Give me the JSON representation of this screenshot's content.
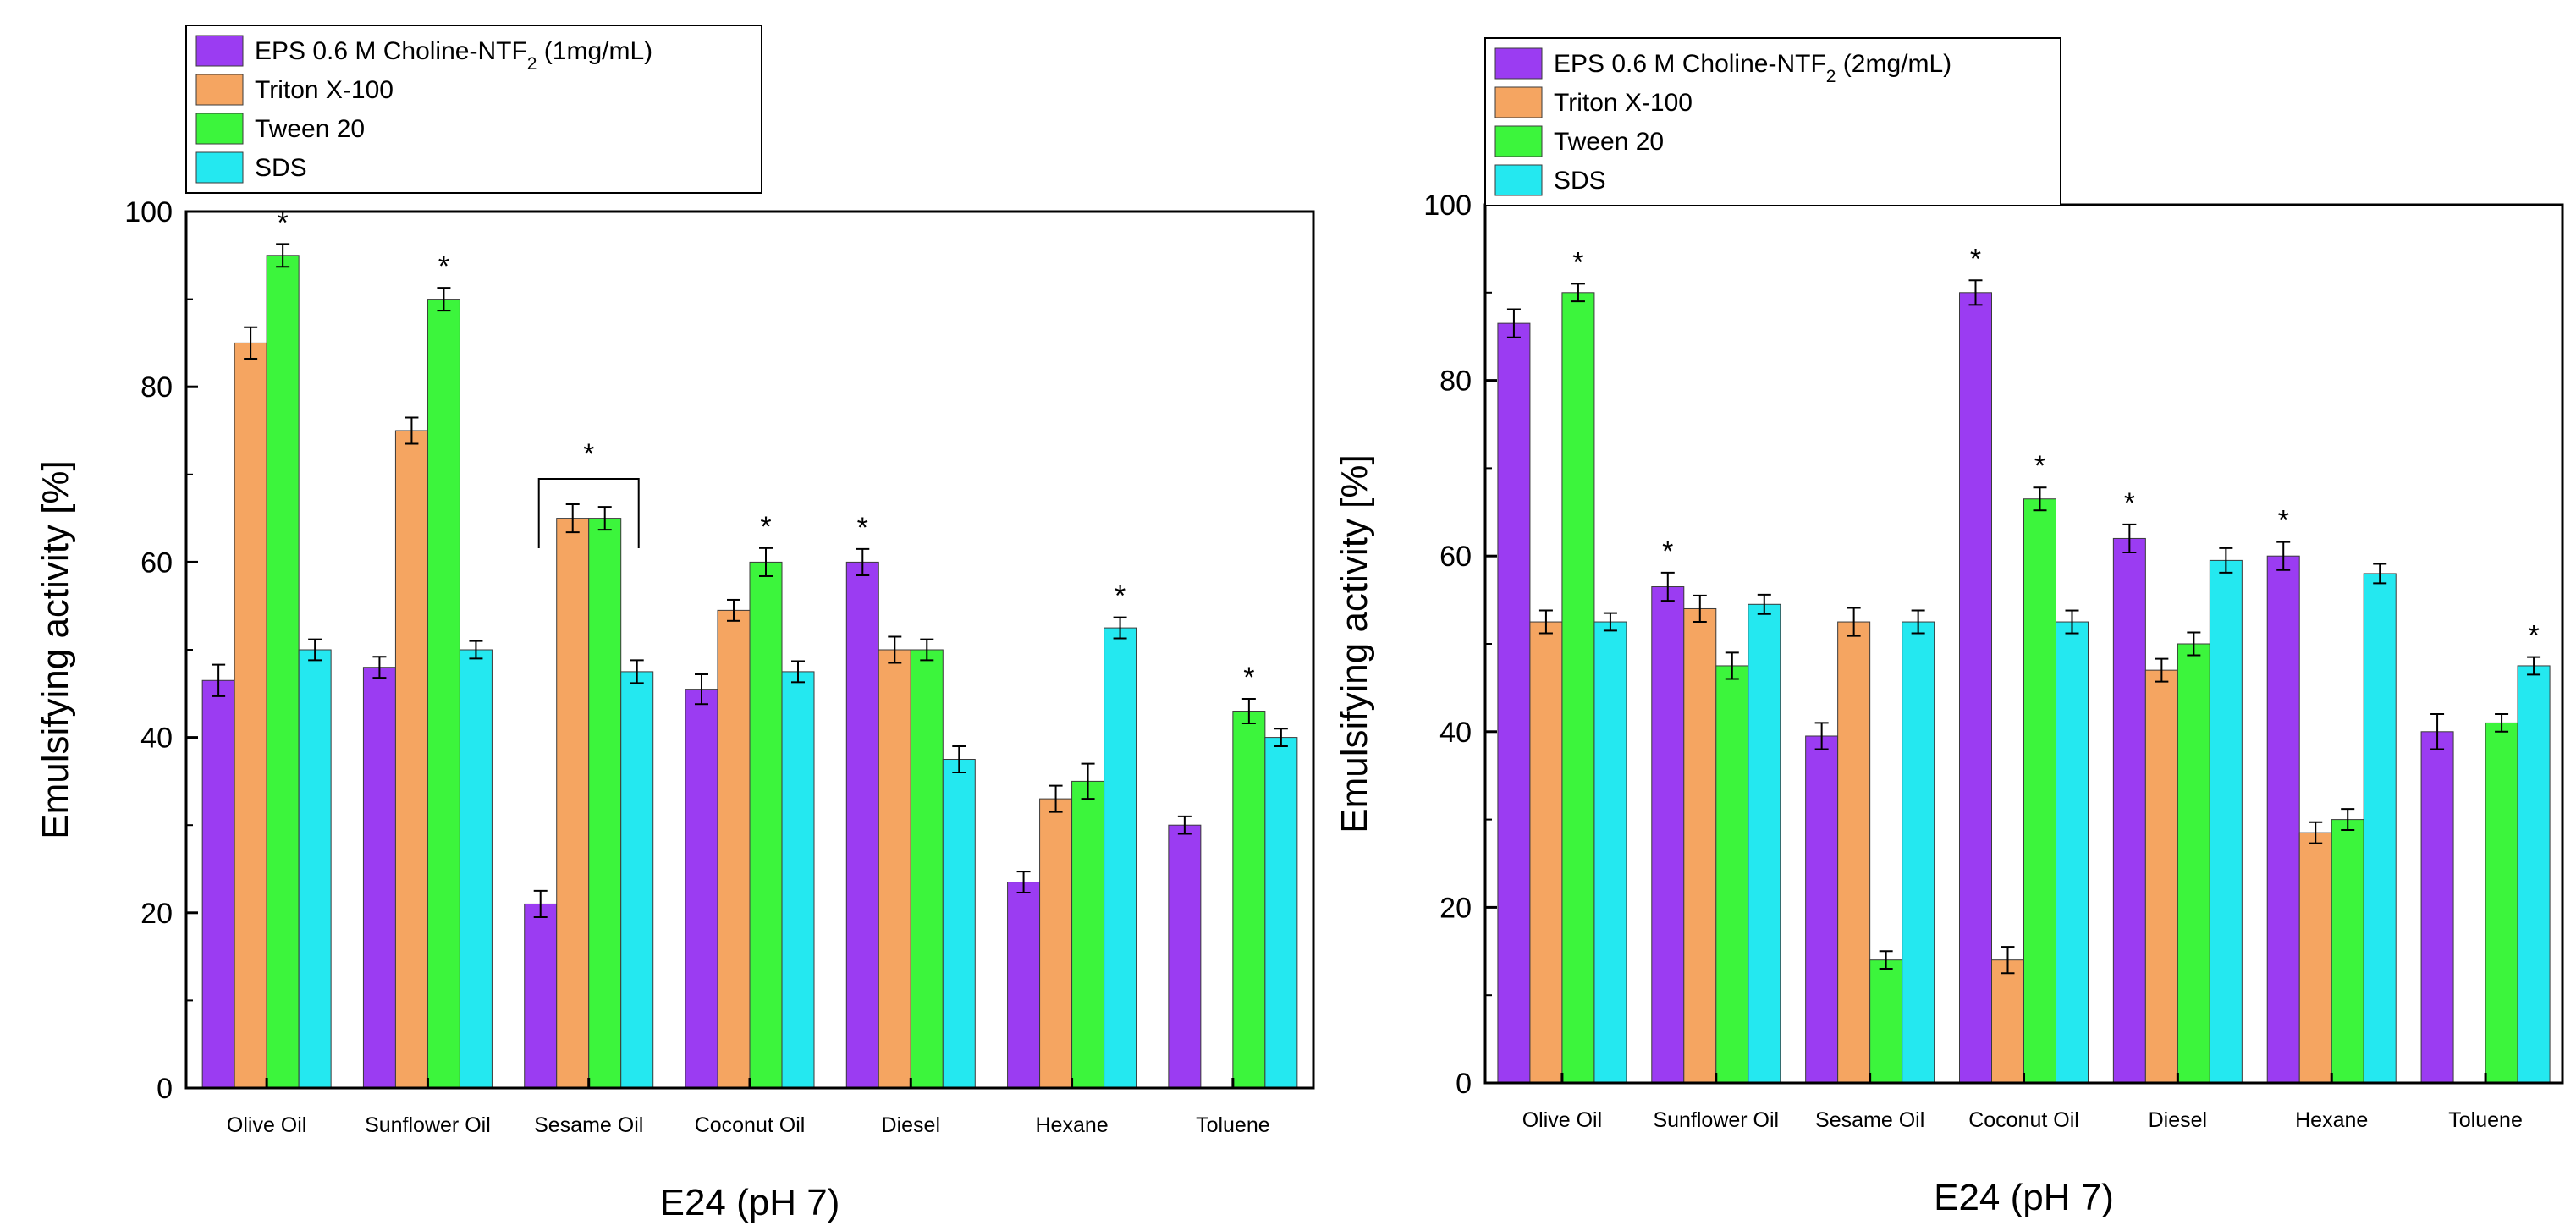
{
  "colors": {
    "eps": "#9b3cf2",
    "triton": "#f5a561",
    "tween": "#3cf53c",
    "sds": "#24e8f0",
    "frame": "#000000"
  },
  "chart_data": [
    {
      "type": "bar",
      "ylabel": "Emulsifying activity [%]",
      "xlabel": "E24 (pH 7)",
      "ylim": [
        0,
        100
      ],
      "yticks": [
        0,
        20,
        40,
        60,
        80,
        100
      ],
      "categories": [
        "Olive Oil",
        "Sunflower Oil",
        "Sesame Oil",
        "Coconut Oil",
        "Diesel",
        "Hexane",
        "Toluene"
      ],
      "legend": {
        "position": "top-left",
        "entries": [
          {
            "pre": "EPS 0.6 M Choline-NTF",
            "sub": "2",
            "post": " (1mg/mL)"
          },
          {
            "pre": "Triton X-100",
            "sub": "",
            "post": ""
          },
          {
            "pre": "Tween 20",
            "sub": "",
            "post": ""
          },
          {
            "pre": "SDS",
            "sub": "",
            "post": ""
          }
        ]
      },
      "series": [
        {
          "name": "EPS 0.6 M Choline-NTF2 (1mg/mL)",
          "values": [
            46.5,
            48,
            21,
            45.5,
            60,
            23.5,
            30
          ],
          "errors": [
            1.8,
            1.2,
            1.5,
            1.7,
            1.5,
            1.2,
            1.0
          ],
          "stars": [
            false,
            false,
            false,
            false,
            true,
            false,
            false
          ]
        },
        {
          "name": "Triton X-100",
          "values": [
            85,
            75,
            65,
            54.5,
            50,
            33,
            null
          ],
          "errors": [
            1.8,
            1.5,
            1.6,
            1.2,
            1.5,
            1.5,
            null
          ],
          "stars": [
            false,
            false,
            false,
            false,
            false,
            false,
            false
          ]
        },
        {
          "name": "Tween 20",
          "values": [
            95,
            90,
            65,
            60,
            50,
            35,
            43
          ],
          "errors": [
            1.3,
            1.3,
            1.3,
            1.6,
            1.2,
            2.0,
            1.4
          ],
          "stars": [
            true,
            true,
            false,
            true,
            false,
            false,
            true
          ]
        },
        {
          "name": "SDS",
          "values": [
            50,
            50,
            47.5,
            47.5,
            37.5,
            52.5,
            40
          ],
          "errors": [
            1.2,
            1.0,
            1.3,
            1.2,
            1.5,
            1.2,
            1.0
          ],
          "stars": [
            false,
            false,
            false,
            false,
            false,
            true,
            false
          ]
        }
      ],
      "brackets": [
        {
          "category": 2,
          "from_series": 1,
          "to_series": 2,
          "label": "*"
        }
      ]
    },
    {
      "type": "bar",
      "ylabel": "Emulsifying activity [%]",
      "xlabel": "E24 (pH 7)",
      "ylim": [
        0,
        100
      ],
      "yticks": [
        0,
        20,
        40,
        60,
        80,
        100
      ],
      "categories": [
        "Olive Oil",
        "Sunflower Oil",
        "Sesame Oil",
        "Coconut Oil",
        "Diesel",
        "Hexane",
        "Toluene"
      ],
      "legend": {
        "position": "top-left",
        "entries": [
          {
            "pre": "EPS 0.6 M Choline-NTF",
            "sub": "2",
            "post": " (2mg/mL)"
          },
          {
            "pre": "Triton X-100",
            "sub": "",
            "post": ""
          },
          {
            "pre": "Tween 20",
            "sub": "",
            "post": ""
          },
          {
            "pre": "SDS",
            "sub": "",
            "post": ""
          }
        ]
      },
      "series": [
        {
          "name": "EPS 0.6 M Choline-NTF2 (2mg/mL)",
          "values": [
            86.5,
            56.5,
            39.5,
            90,
            62,
            60,
            40
          ],
          "errors": [
            1.6,
            1.6,
            1.5,
            1.4,
            1.6,
            1.6,
            2.0
          ],
          "stars": [
            false,
            true,
            false,
            true,
            true,
            true,
            false
          ]
        },
        {
          "name": "Triton X-100",
          "values": [
            52.5,
            54,
            52.5,
            14,
            47,
            28.5,
            null
          ],
          "errors": [
            1.3,
            1.5,
            1.6,
            1.5,
            1.3,
            1.2,
            null
          ],
          "stars": [
            false,
            false,
            false,
            false,
            false,
            false,
            false
          ]
        },
        {
          "name": "Tween 20",
          "values": [
            90,
            47.5,
            14,
            66.5,
            50,
            30,
            41
          ],
          "errors": [
            1.0,
            1.5,
            1.0,
            1.3,
            1.3,
            1.2,
            1.0
          ],
          "stars": [
            true,
            false,
            false,
            true,
            false,
            false,
            false
          ]
        },
        {
          "name": "SDS",
          "values": [
            52.5,
            54.5,
            52.5,
            52.5,
            59.5,
            58,
            47.5
          ],
          "errors": [
            1.0,
            1.1,
            1.3,
            1.3,
            1.4,
            1.1,
            1.0
          ],
          "stars": [
            false,
            false,
            false,
            false,
            false,
            false,
            true
          ]
        }
      ],
      "brackets": []
    }
  ]
}
